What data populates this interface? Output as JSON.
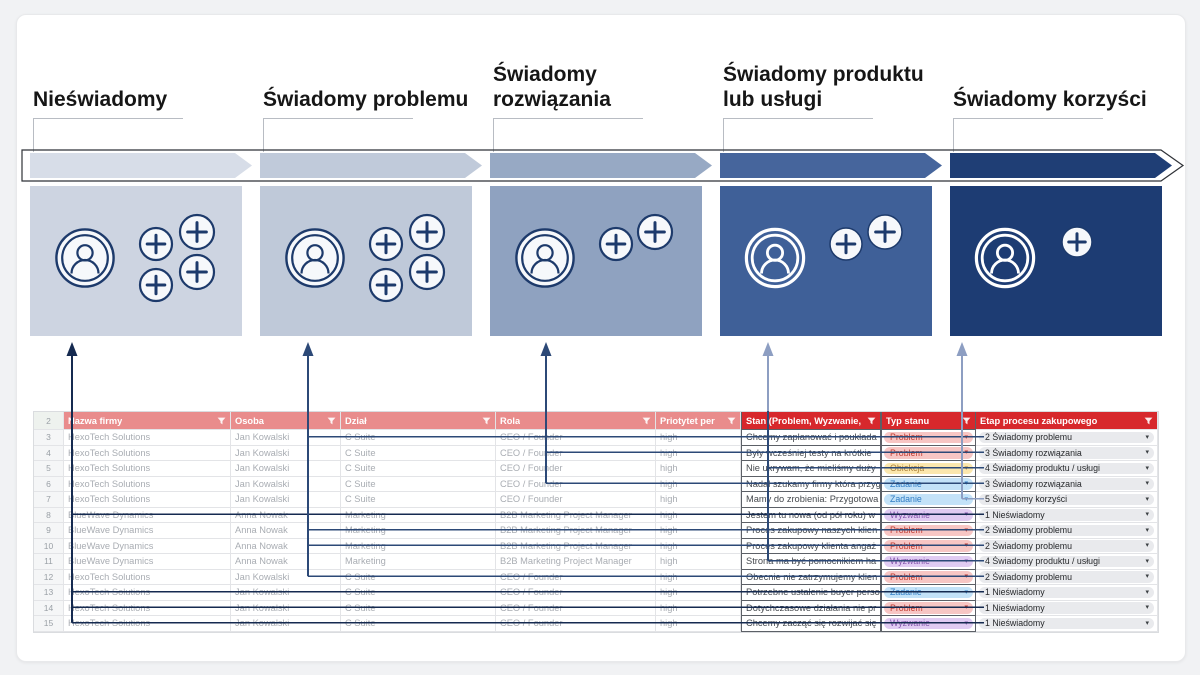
{
  "page": {
    "background": "#f1f2f4",
    "card_background": "#ffffff"
  },
  "stages": [
    {
      "title": "Nieświadomy",
      "chevron_color": "#d7dde8",
      "box_color": "#cdd4e1",
      "icon_style": "light",
      "plus_count": 4,
      "connector": {
        "arrow": "#152a50",
        "line": "#152a50"
      },
      "rows": [
        8,
        13,
        14,
        15
      ]
    },
    {
      "title": "Świadomy problemu",
      "chevron_color": "#c0cada",
      "box_color": "#bfc9d9",
      "icon_style": "light",
      "plus_count": 4,
      "connector": {
        "arrow": "#2c4977",
        "line": "#2c4977"
      },
      "rows": [
        3,
        9,
        10,
        12
      ]
    },
    {
      "title": "Świadomy rozwiązania",
      "chevron_color": "#97a9c4",
      "box_color": "#8fa2c0",
      "icon_style": "light",
      "plus_count": 2,
      "connector": {
        "arrow": "#2c4977",
        "line": "#2c4977"
      },
      "rows": [
        4,
        6
      ]
    },
    {
      "title": "Świadomy produktu lub usługi",
      "chevron_color": "#46659c",
      "box_color": "#3f6098",
      "icon_style": "dark",
      "plus_count": 2,
      "connector": {
        "arrow": "#8d9ec2",
        "line": "#2c4977"
      },
      "rows": [
        5,
        11
      ]
    },
    {
      "title": "Świadomy korzyści",
      "chevron_color": "#1f3e75",
      "box_color": "#1d3c73",
      "icon_style": "dark",
      "plus_count": 1,
      "connector": {
        "arrow": "#8d9ec2",
        "line": "#8d9ec2"
      },
      "rows": [
        7
      ]
    }
  ],
  "icon_colors": {
    "navy": "#1d3a6b",
    "light_fill": "#f6f8fb",
    "white": "#ffffff"
  },
  "table": {
    "corner_label": "2",
    "header_colors": {
      "light": "#e98c8c",
      "dark": "#d7282c"
    },
    "columns": [
      {
        "label": "Nazwa firmy",
        "group": "light"
      },
      {
        "label": "Osoba",
        "group": "light"
      },
      {
        "label": "Dział",
        "group": "light"
      },
      {
        "label": "Rola",
        "group": "light"
      },
      {
        "label": "Priotytet per",
        "group": "light"
      },
      {
        "label": "Stan (Problem, Wyzwanie,",
        "group": "dark"
      },
      {
        "label": "Typ stanu",
        "group": "dark"
      },
      {
        "label": "Etap procesu zakupowego",
        "group": "dark"
      }
    ],
    "status_styles": {
      "Problem": {
        "bg": "#f7c6c4",
        "fg": "#c13a30"
      },
      "Obiekcja": {
        "bg": "#fbe7ae",
        "fg": "#aa8039"
      },
      "Zadanie": {
        "bg": "#c3e2f8",
        "fg": "#2f7cc4"
      },
      "Wyzwanie": {
        "bg": "#e0cbf2",
        "fg": "#8557ad"
      }
    },
    "etap_pill": {
      "bg": "#e9eaed",
      "fg": "#26282b",
      "caret": "#3c4043"
    },
    "dropdown_caret": "▾",
    "rows": [
      {
        "num": 3,
        "firma": "HexoTech Solutions",
        "osoba": "Jan Kowalski",
        "dzial": "C Suite",
        "rola": "CEO / Founder",
        "priorytet": "high",
        "stan": "Chcemy zaplanować i poukłada",
        "typ": "Problem",
        "etap": "2 Świadomy problemu"
      },
      {
        "num": 4,
        "firma": "HexoTech Solutions",
        "osoba": "Jan Kowalski",
        "dzial": "C Suite",
        "rola": "CEO / Founder",
        "priorytet": "high",
        "stan": "Były wcześniej testy na krótkie",
        "typ": "Problem",
        "etap": "3 Świadomy rozwiązania"
      },
      {
        "num": 5,
        "firma": "HexoTech Solutions",
        "osoba": "Jan Kowalski",
        "dzial": "C Suite",
        "rola": "CEO / Founder",
        "priorytet": "high",
        "stan": "Nie ukrywam, że mieliśmy duży",
        "typ": "Obiekcja",
        "etap": "4 Świadomy produktu / usługi"
      },
      {
        "num": 6,
        "firma": "HexoTech Solutions",
        "osoba": "Jan Kowalski",
        "dzial": "C Suite",
        "rola": "CEO / Founder",
        "priorytet": "high",
        "stan": "Nadal szukamy firmy która przyg",
        "typ": "Zadanie",
        "etap": "3 Świadomy rozwiązania"
      },
      {
        "num": 7,
        "firma": "HexoTech Solutions",
        "osoba": "Jan Kowalski",
        "dzial": "C Suite",
        "rola": "CEO / Founder",
        "priorytet": "high",
        "stan": "Mamy do zrobienia: Przygotowa",
        "typ": "Zadanie",
        "etap": "5 Świadomy korzyści"
      },
      {
        "num": 8,
        "firma": "BlueWave Dynamics",
        "osoba": "Anna Nowak",
        "dzial": "Marketing",
        "rola": "B2B Marketing Project Manager",
        "priorytet": "high",
        "stan": "Jestem tu nowa (od pół roku) w",
        "typ": "Wyzwanie",
        "etap": "1 Nieświadomy"
      },
      {
        "num": 9,
        "firma": "BlueWave Dynamics",
        "osoba": "Anna Nowak",
        "dzial": "Marketing",
        "rola": "B2B Marketing Project Manager",
        "priorytet": "high",
        "stan": "Proces zakupowy naszych klien",
        "typ": "Problem",
        "etap": "2 Świadomy problemu"
      },
      {
        "num": 10,
        "firma": "BlueWave Dynamics",
        "osoba": "Anna Nowak",
        "dzial": "Marketing",
        "rola": "B2B Marketing Project Manager",
        "priorytet": "high",
        "stan": "Proces zakupowy klienta angaż",
        "typ": "Problem",
        "etap": "2 Świadomy problemu"
      },
      {
        "num": 11,
        "firma": "BlueWave Dynamics",
        "osoba": "Anna Nowak",
        "dzial": "Marketing",
        "rola": "B2B Marketing Project Manager",
        "priorytet": "high",
        "stan": "Strona ma być pomocnikiem ha",
        "typ": "Wyzwanie",
        "etap": "4 Świadomy produktu / usługi"
      },
      {
        "num": 12,
        "firma": "HexoTech Solutions",
        "osoba": "Jan Kowalski",
        "dzial": "C Suite",
        "rola": "CEO / Founder",
        "priorytet": "high",
        "stan": "Obecnie nie zatrzymujemy klien",
        "typ": "Problem",
        "etap": "2 Świadomy problemu"
      },
      {
        "num": 13,
        "firma": "HexoTech Solutions",
        "osoba": "Jan Kowalski",
        "dzial": "C Suite",
        "rola": "CEO / Founder",
        "priorytet": "high",
        "stan": "Potrzebne ustalenie buyer perso",
        "typ": "Zadanie",
        "etap": "1 Nieświadomy"
      },
      {
        "num": 14,
        "firma": "HexoTech Solutions",
        "osoba": "Jan Kowalski",
        "dzial": "C Suite",
        "rola": "CEO / Founder",
        "priorytet": "high",
        "stan": "Dotychczasowe działania nie pr",
        "typ": "Problem",
        "etap": "1 Nieświadomy"
      },
      {
        "num": 15,
        "firma": "HexoTech Solutions",
        "osoba": "Jan Kowalski",
        "dzial": "C Suite",
        "rola": "CEO / Founder",
        "priorytet": "high",
        "stan": "Chcemy zacząć się rozwijać się",
        "typ": "Wyzwanie",
        "etap": "1 Nieświadomy"
      }
    ]
  }
}
